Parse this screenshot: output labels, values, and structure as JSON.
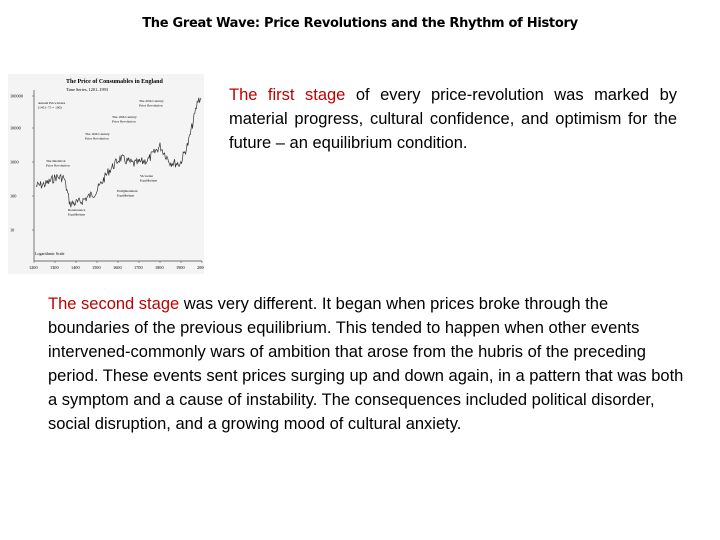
{
  "slide": {
    "title": "The Great Wave: Price Revolutions and the Rhythm of History"
  },
  "figure": {
    "title": "The Price of Consumables in England",
    "subtitle": "Time Series, 1201–1993",
    "y_ticks": [
      "100000",
      "10000",
      "1000",
      "100",
      "10"
    ],
    "x_ticks": [
      "1200",
      "1300",
      "1400",
      "1500",
      "1600",
      "1700",
      "1800",
      "1900",
      "2000"
    ],
    "scale_note": "Logarithmic Scale",
    "annotations": [
      {
        "line1": "Annual Price Index",
        "line2": "(1451–75 = 100)"
      },
      {
        "line1": "The 20th Century",
        "line2": "Price Revolution"
      },
      {
        "line1": "The 18th Century",
        "line2": "Price Revolution"
      },
      {
        "line1": "The 16th Century",
        "line2": "Price Revolution"
      },
      {
        "line1": "The Medieval",
        "line2": "Price Revolution"
      },
      {
        "line1": "Victorian",
        "line2": "Equilibrium"
      },
      {
        "line1": "Enlightenment",
        "line2": "Equilibrium"
      },
      {
        "line1": "Renaissance",
        "line2": "Equilibrium"
      }
    ],
    "line_color": "#333333"
  },
  "paragraph1": {
    "accent": "The first stage",
    "body": " of every price-revolution was marked by material progress, cultural confidence, and optimism for the future – an equilibrium condition."
  },
  "paragraph2": {
    "accent": "The second stage",
    "body": " was very different. It began when prices broke through the boundaries of the previous equilibrium. This tended to happen when other events intervened-commonly wars of ambition that arose from the hubris of the preceding period. These events sent prices surging up and down again, in a pattern that was both a symptom and a cause of instability. The consequences included political disorder, social disruption, and a growing mood of cultural anxiety."
  },
  "colors": {
    "accent": "#c00000",
    "text": "#000000"
  }
}
